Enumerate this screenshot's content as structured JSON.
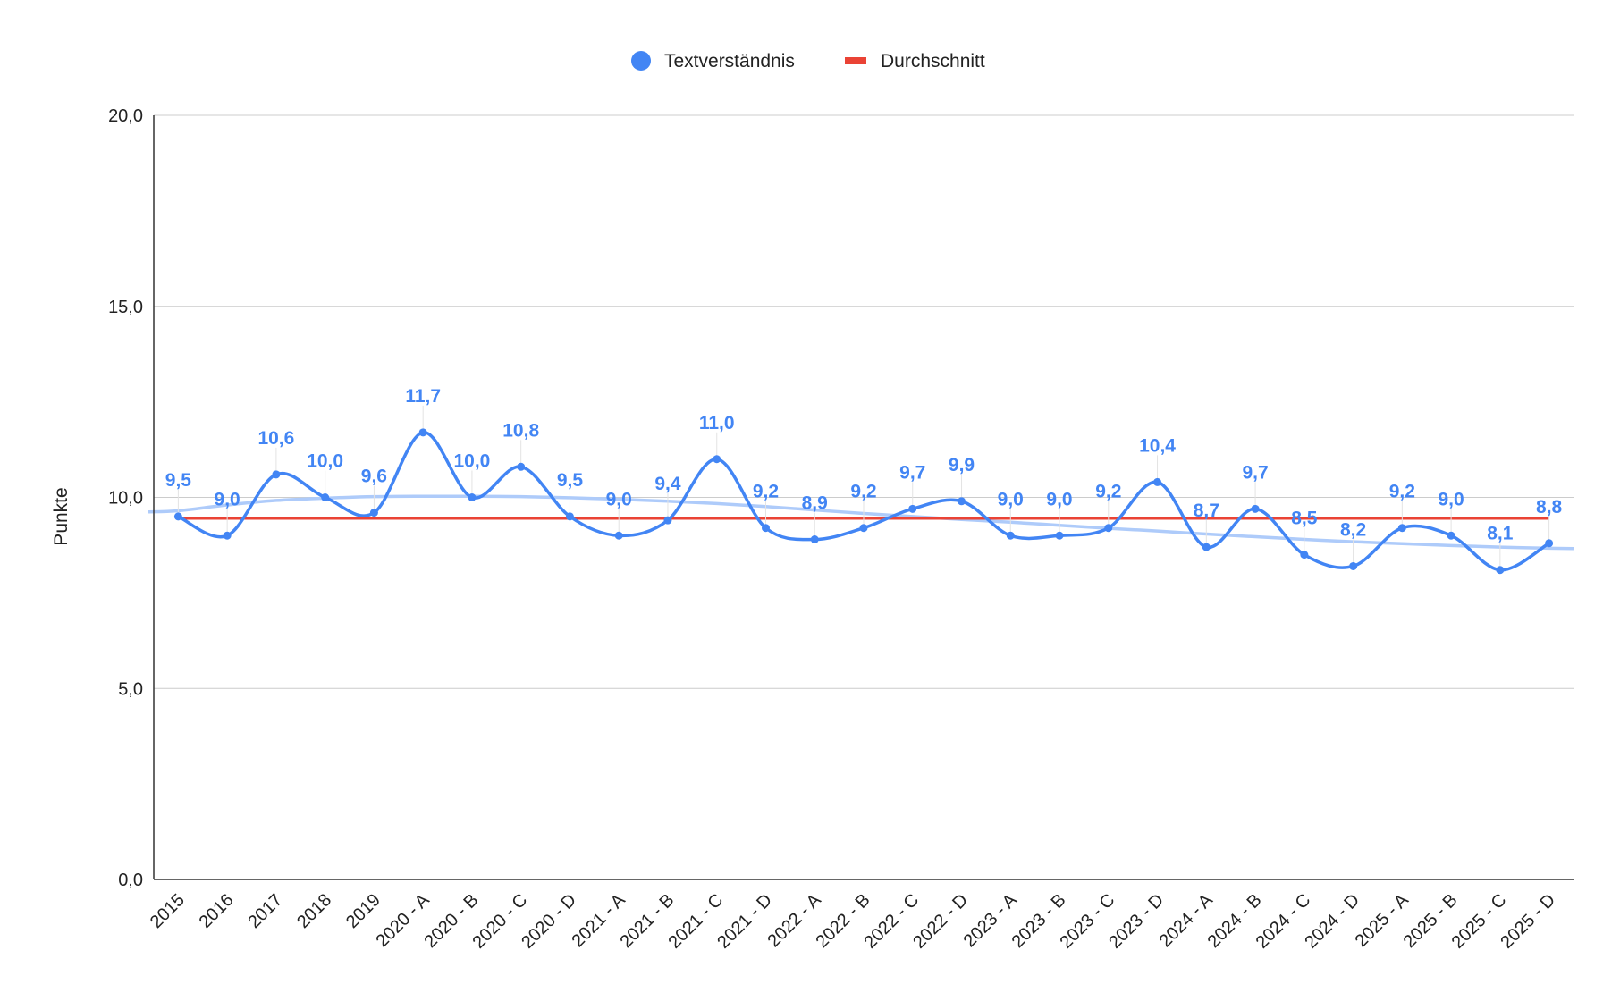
{
  "chart_data": {
    "type": "line",
    "categories": [
      "2015",
      "2016",
      "2017",
      "2018",
      "2019",
      "2020 - A",
      "2020 - B",
      "2020 - C",
      "2020 - D",
      "2021 - A",
      "2021 - B",
      "2021 - C",
      "2021 - D",
      "2022 - A",
      "2022 - B",
      "2022 - C",
      "2022 - D",
      "2023 - A",
      "2023 - B",
      "2023 - C",
      "2023 - D",
      "2024 - A",
      "2024 - B",
      "2024 - C",
      "2024 - D",
      "2025 - A",
      "2025 - B",
      "2025 - C",
      "2025 - D"
    ],
    "series": [
      {
        "name": "Textverständnis",
        "color": "#4285f4",
        "values": [
          9.5,
          9.0,
          10.6,
          10.0,
          9.6,
          11.7,
          10.0,
          10.8,
          9.5,
          9.0,
          9.4,
          11.0,
          9.2,
          8.9,
          9.2,
          9.7,
          9.9,
          9.0,
          9.0,
          9.2,
          10.4,
          8.7,
          9.7,
          8.5,
          8.2,
          9.2,
          9.0,
          8.1,
          8.8
        ],
        "labels": [
          "9,5",
          "9,0",
          "10,6",
          "10,0",
          "9,6",
          "11,7",
          "10,0",
          "10,8",
          "9,5",
          "9,0",
          "9,4",
          "11,0",
          "9,2",
          "8,9",
          "9,2",
          "9,7",
          "9,9",
          "9,0",
          "9,0",
          "9,2",
          "10,4",
          "8,7",
          "9,7",
          "8,5",
          "8,2",
          "9,2",
          "9,0",
          "8,1",
          "8,8"
        ]
      },
      {
        "name": "Durchschnitt",
        "color": "#ea4335",
        "values": [
          9.45,
          9.45,
          9.45,
          9.45,
          9.45,
          9.45,
          9.45,
          9.45,
          9.45,
          9.45,
          9.45,
          9.45,
          9.45,
          9.45,
          9.45,
          9.45,
          9.45,
          9.45,
          9.45,
          9.45,
          9.45,
          9.45,
          9.45,
          9.45,
          9.45,
          9.45,
          9.45,
          9.45,
          9.45
        ]
      }
    ],
    "trendline": {
      "color": "#aecbfa",
      "values": [
        9.65,
        9.8,
        9.92,
        9.98,
        10.02,
        10.03,
        10.03,
        10.02,
        9.99,
        9.95,
        9.9,
        9.84,
        9.76,
        9.67,
        9.58,
        9.5,
        9.42,
        9.35,
        9.27,
        9.19,
        9.12,
        9.04,
        8.97,
        8.9,
        8.84,
        8.79,
        8.74,
        8.7,
        8.67
      ]
    },
    "ylabel": "Punkte",
    "ylim": [
      0,
      20
    ],
    "yticks": [
      {
        "value": 0,
        "label": "0,0"
      },
      {
        "value": 5,
        "label": "5,0"
      },
      {
        "value": 10,
        "label": "10,0"
      },
      {
        "value": 15,
        "label": "15,0"
      },
      {
        "value": 20,
        "label": "20,0"
      }
    ],
    "grid": true,
    "legend_position": "top-center"
  }
}
